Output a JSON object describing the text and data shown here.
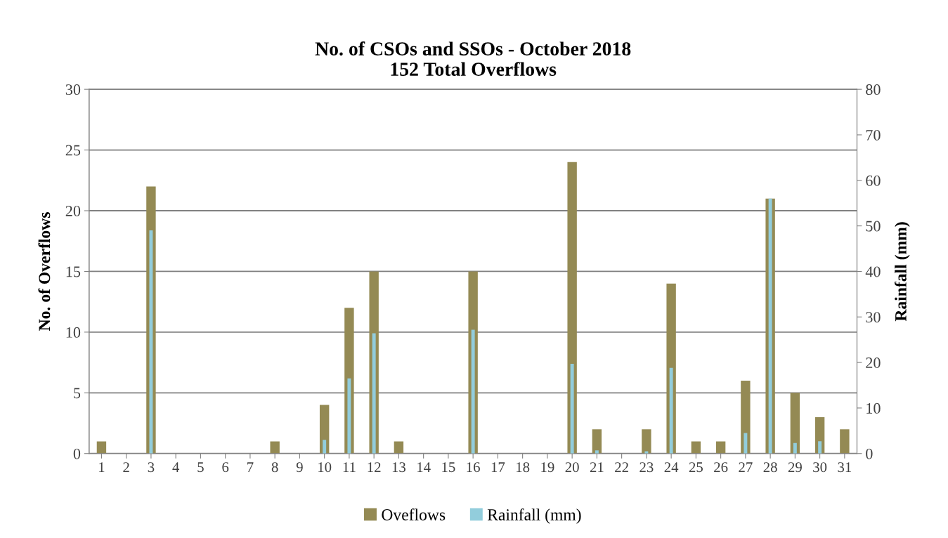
{
  "chart_data": {
    "type": "bar",
    "title": "No. of CSOs and SSOs - October 2018\n152 Total Overflows",
    "categories": [
      "1",
      "2",
      "3",
      "4",
      "5",
      "6",
      "7",
      "8",
      "9",
      "10",
      "11",
      "12",
      "13",
      "14",
      "15",
      "16",
      "17",
      "18",
      "19",
      "20",
      "21",
      "22",
      "23",
      "24",
      "25",
      "26",
      "27",
      "28",
      "29",
      "30",
      "31"
    ],
    "series": [
      {
        "name": "Oveflows",
        "color": "#948a54",
        "values": [
          1,
          0,
          22,
          0,
          0,
          0,
          0,
          1,
          0,
          4,
          12,
          15,
          1,
          0,
          0,
          15,
          0,
          0,
          0,
          24,
          2,
          0,
          2,
          14,
          1,
          1,
          6,
          21,
          5,
          3,
          2
        ]
      },
      {
        "name": "Rainfall (mm)",
        "color": "#92cddc",
        "axis": "y2",
        "values": [
          0,
          0,
          49,
          0,
          0,
          0,
          0,
          0,
          0,
          3,
          16.5,
          26.4,
          0,
          0,
          0,
          27.2,
          0,
          0,
          0,
          19.7,
          0.7,
          0,
          0.5,
          18.8,
          null,
          0,
          4.5,
          56,
          2.3,
          2.7,
          0
        ]
      }
    ],
    "ylabel": "No. of Overflows",
    "y2label": "Rainfall (mm)",
    "ylim": [
      0,
      30
    ],
    "yticks": [
      0,
      5,
      10,
      15,
      20,
      25,
      30
    ],
    "y2lim": [
      0,
      80
    ],
    "y2ticks": [
      0,
      10,
      20,
      30,
      40,
      50,
      60,
      70,
      80
    ],
    "grid": "y",
    "legend": "bottom"
  }
}
